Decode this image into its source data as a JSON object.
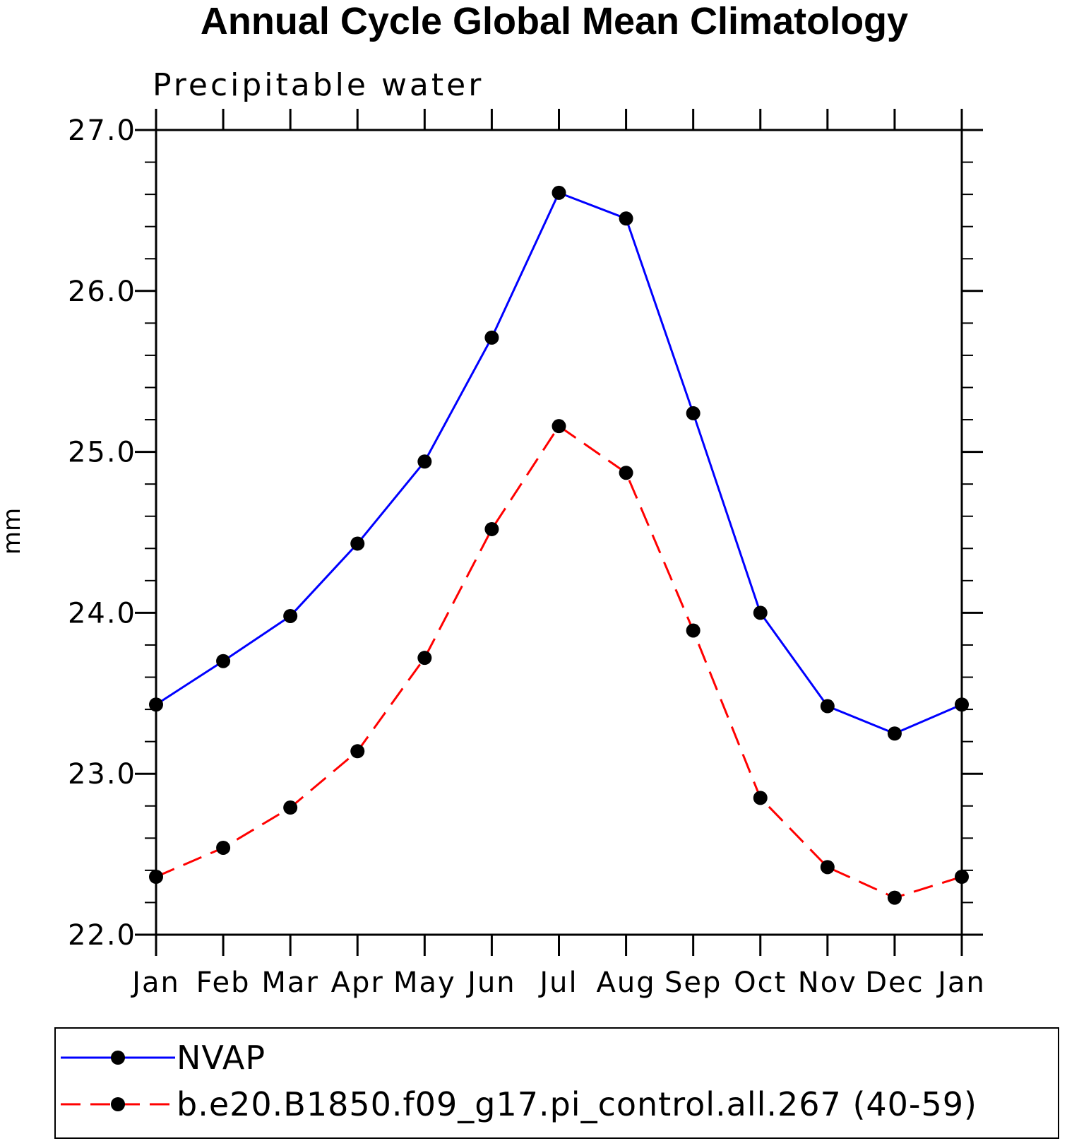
{
  "chart_data": {
    "type": "line",
    "title": "Annual Cycle Global Mean Climatology",
    "subtitle": "Precipitable water",
    "ylabel": "mm",
    "xlabel": "",
    "categories": [
      "Jan",
      "Feb",
      "Mar",
      "Apr",
      "May",
      "Jun",
      "Jul",
      "Aug",
      "Sep",
      "Oct",
      "Nov",
      "Dec",
      "Jan"
    ],
    "ylim": [
      22.0,
      27.0
    ],
    "yticks": [
      "22.0",
      "23.0",
      "24.0",
      "25.0",
      "26.0",
      "27.0"
    ],
    "legend_position": "bottom",
    "series": [
      {
        "name": "NVAP",
        "color": "#0000ff",
        "line_style": "solid",
        "marker": "filled-circle",
        "values": [
          23.43,
          23.7,
          23.98,
          24.43,
          24.94,
          25.71,
          26.61,
          26.45,
          25.24,
          24.0,
          23.42,
          23.25,
          23.43
        ]
      },
      {
        "name": "b.e20.B1850.f09_g17.pi_control.all.267 (40-59)",
        "color": "#ff0000",
        "line_style": "dashed",
        "marker": "filled-circle",
        "values": [
          22.36,
          22.54,
          22.79,
          23.14,
          23.72,
          24.52,
          25.16,
          24.87,
          23.89,
          22.85,
          22.42,
          22.23,
          22.36
        ]
      }
    ]
  }
}
